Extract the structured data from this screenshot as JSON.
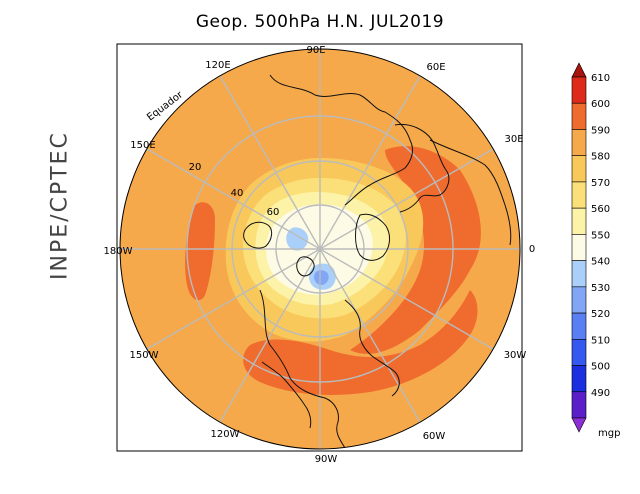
{
  "title": "Geop. 500hPa H.N. JUL2019",
  "organization": "INPE/CPTEC",
  "equator_label": "Equador",
  "longitude_labels": [
    "90E",
    "60E",
    "30E",
    "0",
    "30W",
    "60W",
    "90W",
    "120W",
    "150W",
    "180W",
    "150E",
    "120E"
  ],
  "latitude_labels": [
    "20",
    "40",
    "60"
  ],
  "colorbar": {
    "unit": "mgp",
    "levels": [
      "490",
      "500",
      "510",
      "520",
      "530",
      "540",
      "550",
      "560",
      "570",
      "580",
      "590",
      "600",
      "610"
    ],
    "colors": {
      "c490": "#5a1fc8",
      "c500": "#1a2fe0",
      "c510": "#3458f0",
      "c520": "#5a7ff2",
      "c530": "#80a6f5",
      "c540": "#aad0fa",
      "c550": "#fdfbe6",
      "c560": "#fcf2a8",
      "c570": "#fbe07a",
      "c580": "#f9c85a",
      "c590": "#f6a94a",
      "c600": "#ef6b2e",
      "c610": "#de2a1a",
      "c_top": "#a8140e",
      "c_bottom": "#8e2fd6"
    }
  },
  "field_colors": {
    "bg": "#f6a94a",
    "high": "#ef6b2e",
    "ring580": "#f9c85a",
    "ring570": "#fbe07a",
    "ring560": "#fcf2a8",
    "ring550": "#fdfbe6",
    "low540": "#aad0fa",
    "low530": "#80a6f5",
    "grid": "#bbbbbb",
    "coast": "#111111"
  }
}
